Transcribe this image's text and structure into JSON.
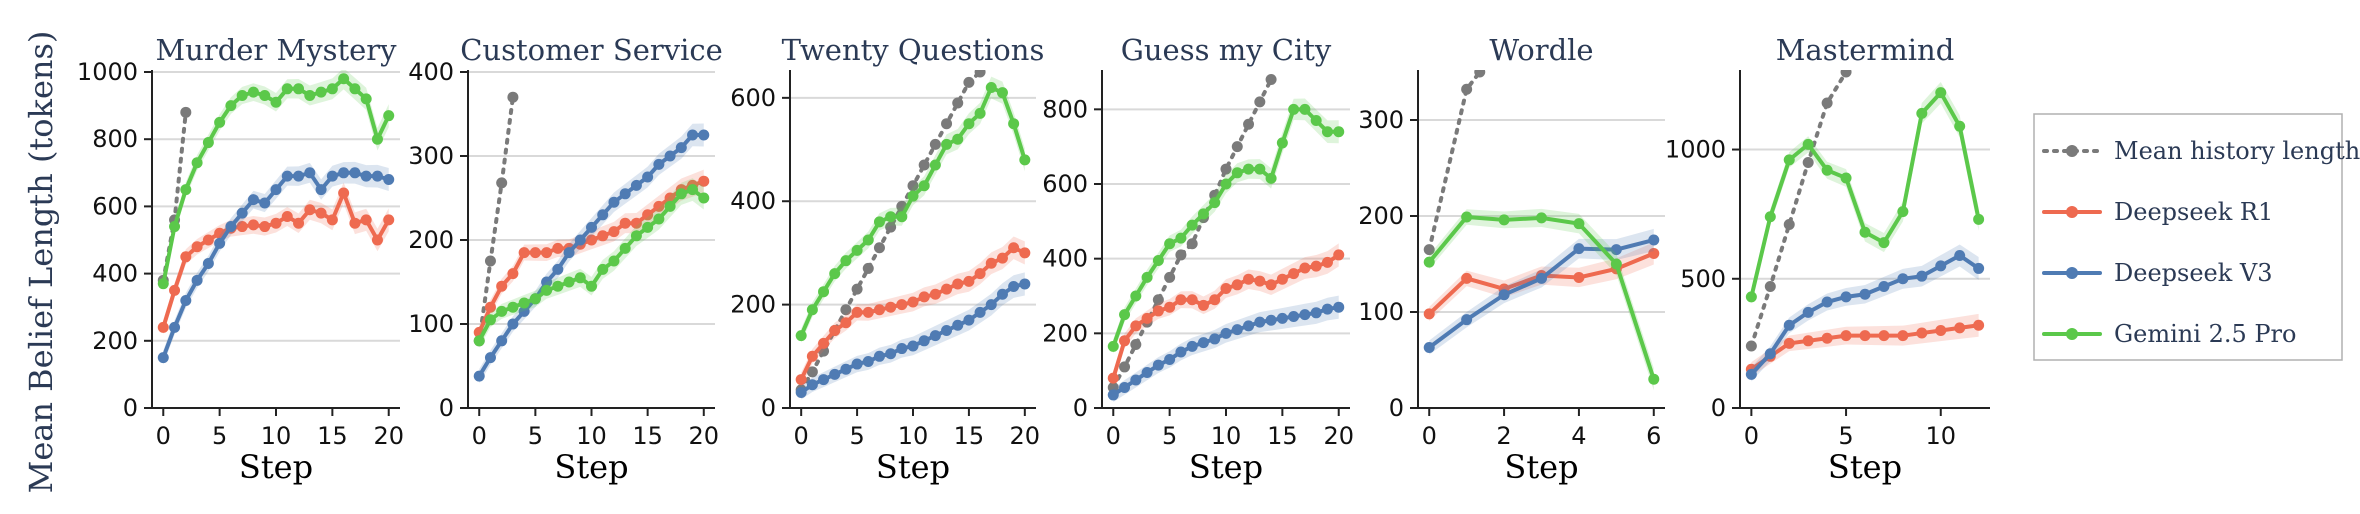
{
  "figure": {
    "ylabel": "Mean Belief Length (tokens)",
    "xlabel": "Step"
  },
  "legend": {
    "position": "right",
    "items": [
      {
        "label": "Mean history length",
        "color": "#7a7a7a",
        "style": "dotted"
      },
      {
        "label": "Deepseek R1",
        "color": "#ee6a50",
        "style": "solid"
      },
      {
        "label": "Deepseek V3",
        "color": "#4f7bb3",
        "style": "solid"
      },
      {
        "label": "Gemini 2.5 Pro",
        "color": "#5bc84a",
        "style": "solid"
      }
    ]
  },
  "chart_data": [
    {
      "type": "line",
      "title": "Murder Mystery",
      "xlabel": "Step",
      "xlim": [
        -1,
        21
      ],
      "ylim": [
        0,
        1000
      ],
      "xticks": [
        0,
        5,
        10,
        15,
        20
      ],
      "yticks": [
        0,
        200,
        400,
        600,
        800,
        1000
      ],
      "grid": true,
      "series": [
        {
          "name": "Mean history length",
          "x": [
            0,
            1,
            2
          ],
          "y": [
            380,
            560,
            880
          ]
        },
        {
          "name": "Deepseek R1",
          "x": [
            0,
            1,
            2,
            3,
            4,
            5,
            6,
            7,
            8,
            9,
            10,
            11,
            12,
            13,
            14,
            15,
            16,
            17,
            18,
            19,
            20
          ],
          "y": [
            240,
            350,
            450,
            480,
            500,
            520,
            535,
            540,
            545,
            540,
            550,
            570,
            550,
            590,
            580,
            560,
            640,
            550,
            560,
            500,
            560
          ]
        },
        {
          "name": "Deepseek V3",
          "x": [
            0,
            1,
            2,
            3,
            4,
            5,
            6,
            7,
            8,
            9,
            10,
            11,
            12,
            13,
            14,
            15,
            16,
            17,
            18,
            19,
            20
          ],
          "y": [
            150,
            240,
            320,
            380,
            430,
            490,
            540,
            580,
            620,
            610,
            650,
            690,
            690,
            700,
            650,
            690,
            700,
            700,
            690,
            690,
            680
          ]
        },
        {
          "name": "Gemini 2.5 Pro",
          "x": [
            0,
            1,
            2,
            3,
            4,
            5,
            6,
            7,
            8,
            9,
            10,
            11,
            12,
            13,
            14,
            15,
            16,
            17,
            18,
            19,
            20
          ],
          "y": [
            370,
            540,
            650,
            730,
            790,
            850,
            900,
            930,
            940,
            930,
            910,
            950,
            950,
            930,
            940,
            950,
            980,
            950,
            920,
            800,
            870
          ]
        }
      ]
    },
    {
      "type": "line",
      "title": "Customer Service",
      "xlabel": "Step",
      "xlim": [
        -1,
        21
      ],
      "ylim": [
        0,
        400
      ],
      "xticks": [
        0,
        5,
        10,
        15,
        20
      ],
      "yticks": [
        0,
        100,
        200,
        300,
        400
      ],
      "grid": true,
      "series": [
        {
          "name": "Mean history length",
          "x": [
            0,
            1,
            2,
            3
          ],
          "y": [
            80,
            175,
            268,
            370
          ]
        },
        {
          "name": "Deepseek R1",
          "x": [
            0,
            1,
            2,
            3,
            4,
            5,
            6,
            7,
            8,
            9,
            10,
            11,
            12,
            13,
            14,
            15,
            16,
            17,
            18,
            19,
            20
          ],
          "y": [
            90,
            120,
            145,
            160,
            185,
            185,
            185,
            190,
            190,
            195,
            200,
            205,
            210,
            220,
            220,
            230,
            240,
            250,
            260,
            265,
            270
          ]
        },
        {
          "name": "Deepseek V3",
          "x": [
            0,
            1,
            2,
            3,
            4,
            5,
            6,
            7,
            8,
            9,
            10,
            11,
            12,
            13,
            14,
            15,
            16,
            17,
            18,
            19,
            20
          ],
          "y": [
            38,
            60,
            80,
            100,
            115,
            130,
            150,
            165,
            185,
            200,
            215,
            230,
            245,
            255,
            265,
            275,
            290,
            300,
            310,
            325,
            325
          ]
        },
        {
          "name": "Gemini 2.5 Pro",
          "x": [
            0,
            1,
            2,
            3,
            4,
            5,
            6,
            7,
            8,
            9,
            10,
            11,
            12,
            13,
            14,
            15,
            16,
            17,
            18,
            19,
            20
          ],
          "y": [
            80,
            105,
            115,
            120,
            125,
            130,
            140,
            145,
            150,
            155,
            145,
            165,
            175,
            190,
            205,
            215,
            225,
            240,
            255,
            260,
            250
          ]
        }
      ]
    },
    {
      "type": "line",
      "title": "Twenty Questions",
      "xlabel": "Step",
      "xlim": [
        -1,
        21
      ],
      "ylim": [
        0,
        650
      ],
      "xticks": [
        0,
        5,
        10,
        15,
        20
      ],
      "yticks": [
        0,
        200,
        400,
        600
      ],
      "grid": true,
      "series": [
        {
          "name": "Mean history length",
          "x": [
            0,
            1,
            2,
            3,
            4,
            5,
            6,
            7,
            8,
            9,
            10,
            11,
            12,
            13,
            14,
            15,
            16
          ],
          "y": [
            35,
            70,
            110,
            150,
            190,
            230,
            270,
            310,
            350,
            390,
            430,
            470,
            510,
            550,
            590,
            630,
            650
          ]
        },
        {
          "name": "Deepseek R1",
          "x": [
            0,
            1,
            2,
            3,
            4,
            5,
            6,
            7,
            8,
            9,
            10,
            11,
            12,
            13,
            14,
            15,
            16,
            17,
            18,
            19,
            20
          ],
          "y": [
            55,
            100,
            125,
            150,
            165,
            185,
            185,
            190,
            195,
            200,
            205,
            215,
            220,
            230,
            240,
            245,
            260,
            280,
            290,
            310,
            300
          ]
        },
        {
          "name": "Deepseek V3",
          "x": [
            0,
            1,
            2,
            3,
            4,
            5,
            6,
            7,
            8,
            9,
            10,
            11,
            12,
            13,
            14,
            15,
            16,
            17,
            18,
            19,
            20
          ],
          "y": [
            30,
            45,
            55,
            65,
            75,
            85,
            90,
            100,
            105,
            115,
            120,
            130,
            140,
            150,
            160,
            170,
            185,
            200,
            220,
            235,
            240
          ]
        },
        {
          "name": "Gemini 2.5 Pro",
          "x": [
            0,
            1,
            2,
            3,
            4,
            5,
            6,
            7,
            8,
            9,
            10,
            11,
            12,
            13,
            14,
            15,
            16,
            17,
            18,
            19,
            20
          ],
          "y": [
            140,
            190,
            225,
            260,
            285,
            305,
            325,
            360,
            370,
            370,
            410,
            430,
            470,
            510,
            520,
            550,
            570,
            620,
            610,
            550,
            480
          ]
        }
      ]
    },
    {
      "type": "line",
      "title": "Guess my City",
      "xlabel": "Step",
      "xlim": [
        -1,
        21
      ],
      "ylim": [
        0,
        900
      ],
      "xticks": [
        0,
        5,
        10,
        15,
        20
      ],
      "yticks": [
        0,
        200,
        400,
        600,
        800
      ],
      "grid": true,
      "series": [
        {
          "name": "Mean history length",
          "x": [
            0,
            1,
            2,
            3,
            4,
            5,
            6,
            7,
            8,
            9,
            10,
            11,
            12,
            13,
            14
          ],
          "y": [
            55,
            110,
            170,
            230,
            290,
            350,
            410,
            440,
            510,
            570,
            640,
            700,
            760,
            820,
            880
          ]
        },
        {
          "name": "Deepseek R1",
          "x": [
            0,
            1,
            2,
            3,
            4,
            5,
            6,
            7,
            8,
            9,
            10,
            11,
            12,
            13,
            14,
            15,
            16,
            17,
            18,
            19,
            20
          ],
          "y": [
            80,
            180,
            220,
            240,
            260,
            270,
            290,
            290,
            275,
            290,
            320,
            330,
            345,
            340,
            330,
            345,
            360,
            375,
            380,
            390,
            410
          ]
        },
        {
          "name": "Deepseek V3",
          "x": [
            0,
            1,
            2,
            3,
            4,
            5,
            6,
            7,
            8,
            9,
            10,
            11,
            12,
            13,
            14,
            15,
            16,
            17,
            18,
            19,
            20
          ],
          "y": [
            35,
            55,
            75,
            95,
            115,
            130,
            150,
            165,
            175,
            185,
            200,
            210,
            220,
            230,
            235,
            240,
            245,
            250,
            255,
            265,
            270
          ]
        },
        {
          "name": "Gemini 2.5 Pro",
          "x": [
            0,
            1,
            2,
            3,
            4,
            5,
            6,
            7,
            8,
            9,
            10,
            11,
            12,
            13,
            14,
            15,
            16,
            17,
            18,
            19,
            20
          ],
          "y": [
            165,
            250,
            300,
            350,
            395,
            440,
            455,
            490,
            520,
            550,
            600,
            630,
            640,
            640,
            615,
            710,
            800,
            800,
            770,
            740,
            740
          ]
        }
      ]
    },
    {
      "type": "line",
      "title": "Wordle",
      "xlabel": "Step",
      "xlim": [
        -0.3,
        6.3
      ],
      "ylim": [
        0,
        350
      ],
      "xticks": [
        0,
        2,
        4,
        6
      ],
      "yticks": [
        0,
        100,
        200,
        300
      ],
      "grid": true,
      "series": [
        {
          "name": "Mean history length",
          "x": [
            0,
            1,
            1.35
          ],
          "y": [
            165,
            332,
            350
          ]
        },
        {
          "name": "Deepseek R1",
          "x": [
            0,
            1,
            2,
            3,
            4,
            5,
            6
          ],
          "y": [
            98,
            135,
            124,
            138,
            136,
            145,
            161
          ]
        },
        {
          "name": "Deepseek V3",
          "x": [
            0,
            1,
            2,
            3,
            4,
            5,
            6
          ],
          "y": [
            63,
            92,
            118,
            135,
            166,
            165,
            175
          ]
        },
        {
          "name": "Gemini 2.5 Pro",
          "x": [
            0,
            1,
            2,
            3,
            4,
            5,
            6
          ],
          "y": [
            152,
            199,
            196,
            198,
            192,
            150,
            30
          ]
        }
      ]
    },
    {
      "type": "line",
      "title": "Mastermind",
      "xlabel": "Step",
      "xlim": [
        -0.6,
        12.6
      ],
      "ylim": [
        0,
        1300
      ],
      "xticks": [
        0,
        5,
        10
      ],
      "yticks": [
        0,
        500,
        1000
      ],
      "grid": true,
      "series": [
        {
          "name": "Mean history length",
          "x": [
            0,
            1,
            2,
            3,
            4,
            5
          ],
          "y": [
            240,
            470,
            710,
            950,
            1180,
            1300
          ]
        },
        {
          "name": "Deepseek R1",
          "x": [
            0,
            1,
            2,
            3,
            4,
            5,
            6,
            7,
            8,
            9,
            10,
            11,
            12
          ],
          "y": [
            150,
            200,
            250,
            260,
            270,
            280,
            280,
            280,
            280,
            290,
            300,
            310,
            320
          ]
        },
        {
          "name": "Deepseek V3",
          "x": [
            0,
            1,
            2,
            3,
            4,
            5,
            6,
            7,
            8,
            9,
            10,
            11,
            12
          ],
          "y": [
            130,
            210,
            320,
            370,
            410,
            430,
            440,
            470,
            500,
            510,
            550,
            590,
            540
          ]
        },
        {
          "name": "Gemini 2.5 Pro",
          "x": [
            0,
            1,
            2,
            3,
            4,
            5,
            6,
            7,
            8,
            9,
            10,
            11,
            12
          ],
          "y": [
            430,
            740,
            960,
            1020,
            920,
            890,
            680,
            640,
            760,
            1140,
            1220,
            1090,
            730
          ]
        }
      ]
    }
  ]
}
